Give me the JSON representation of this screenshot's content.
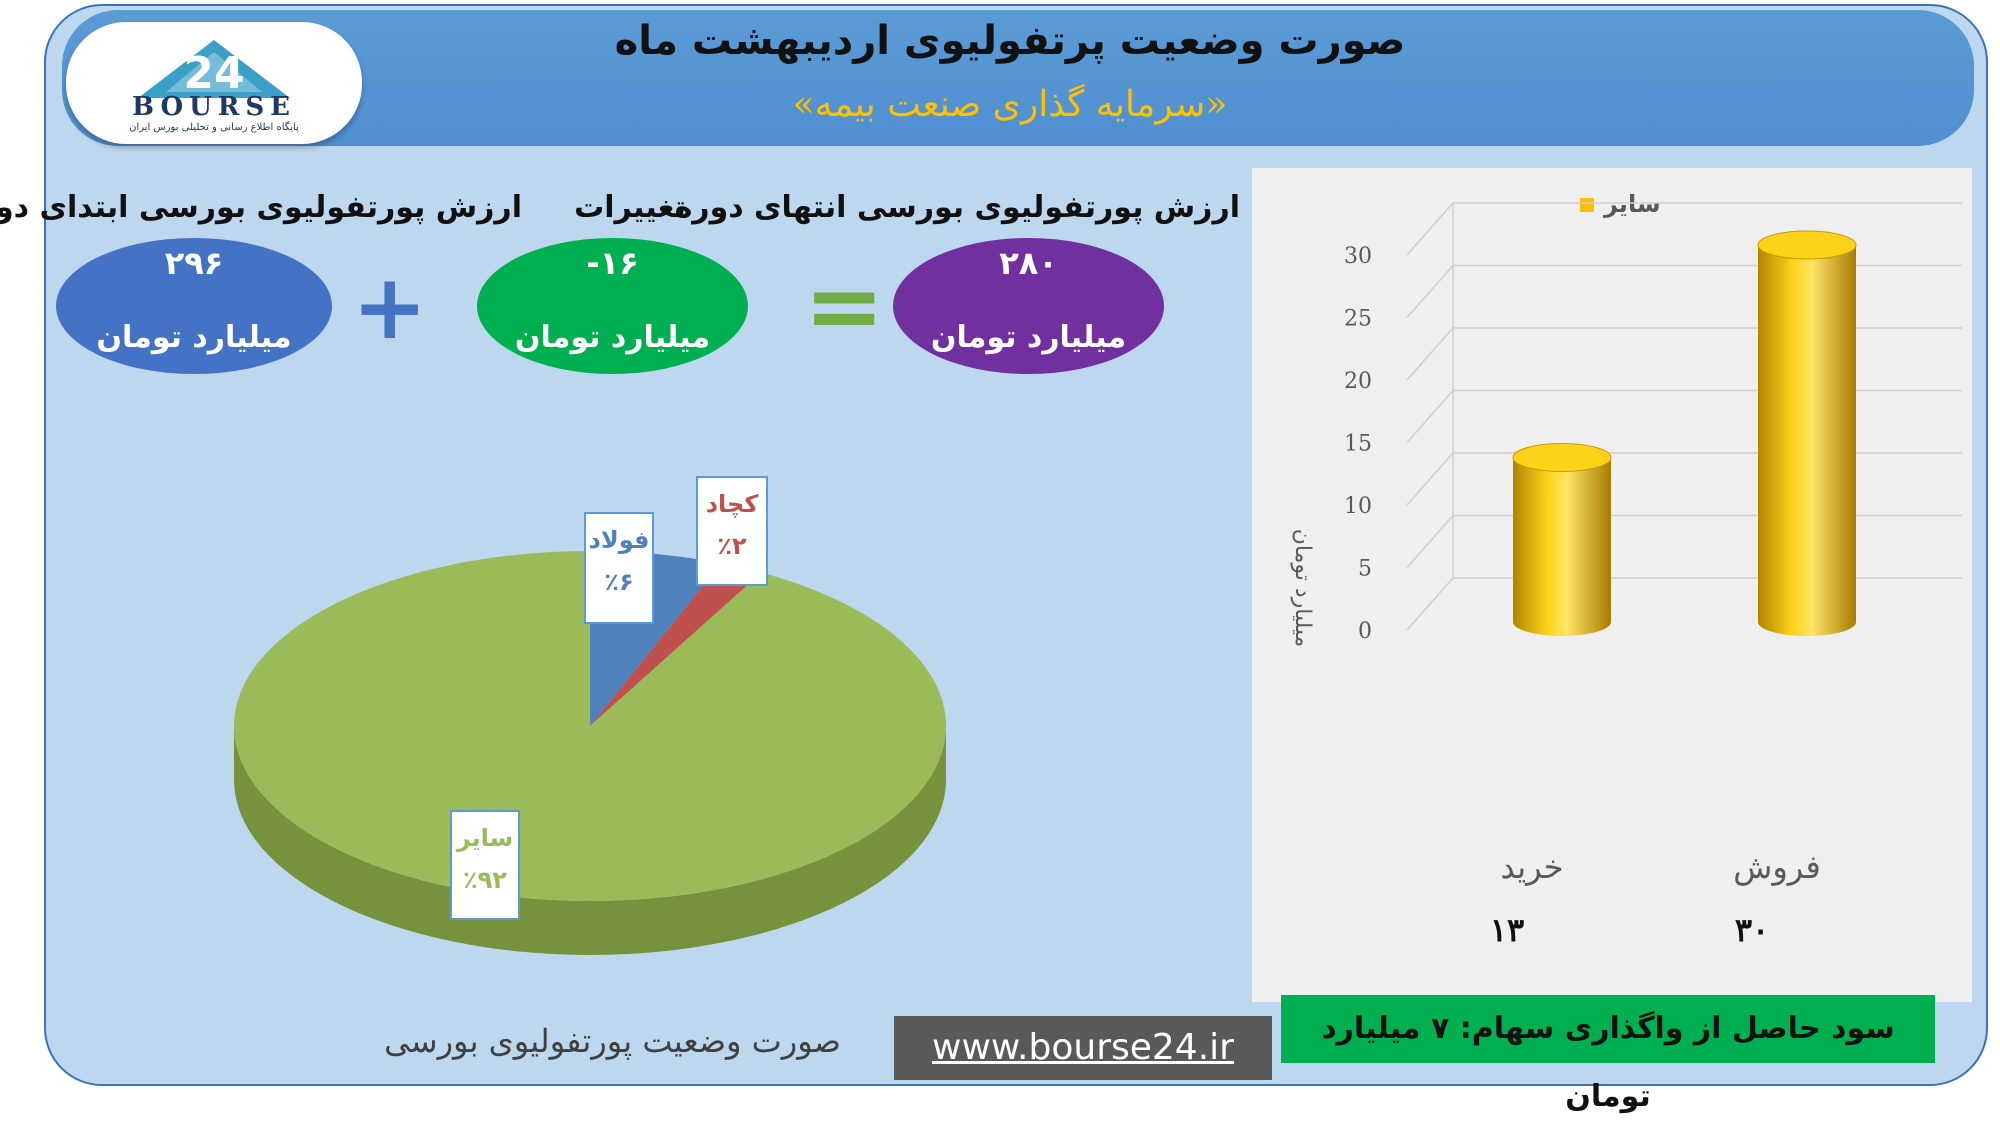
{
  "header": {
    "title": "صورت وضعیت پرتفولیوی اردیبهشت ماه",
    "subtitle": "«سرمایه گذاری صنعت بیمه»"
  },
  "logo": {
    "text": "BOURSE",
    "number": "24",
    "subtext": "پایگاه اطلاع رسانی و تحلیلی بورس ایران"
  },
  "equation": {
    "start": {
      "label": "ارزش پورتفولیوی بورسی ابتدای دوره",
      "value": "۲۹۶",
      "unit": "میلیارد تومان"
    },
    "change": {
      "label": "تغییرات",
      "value": "-۱۶",
      "unit": "میلیارد تومان"
    },
    "end": {
      "label": "ارزش پورتفولیوی بورسی انتهای دوره",
      "value": "۲۸۰",
      "unit": "میلیارد تومان"
    },
    "plus_symbol": "+",
    "equals_symbol": "="
  },
  "pie": {
    "caption": "صورت وضعیت پورتفولیوی بورسی"
  },
  "profit_box": "سود حاصل از واگذاری سهام: ۷ میلیارد تومان",
  "website": "www.bourse24.ir",
  "chart_data": [
    {
      "type": "pie",
      "slices": [
        {
          "label": "سایر",
          "percent_label": "٪۹۲",
          "value": 92,
          "color": "#9bbb59"
        },
        {
          "label": "فولاد",
          "percent_label": "٪۶",
          "value": 6,
          "color": "#4f81bd"
        },
        {
          "label": "کچاد",
          "percent_label": "٪۲",
          "value": 2,
          "color": "#c0504d"
        }
      ]
    },
    {
      "type": "bar",
      "categories": [
        "خرید",
        "فروش"
      ],
      "value_labels": [
        "۱۳",
        "۳۰"
      ],
      "series": [
        {
          "name": "سایر",
          "values": [
            13,
            30
          ],
          "color": "#ffc000"
        }
      ],
      "ylabel": "میلیارد تومان",
      "ylim": [
        0,
        30
      ],
      "yticks": [
        0,
        5,
        10,
        15,
        20,
        25,
        30
      ],
      "legend": "top",
      "grid": true
    }
  ]
}
